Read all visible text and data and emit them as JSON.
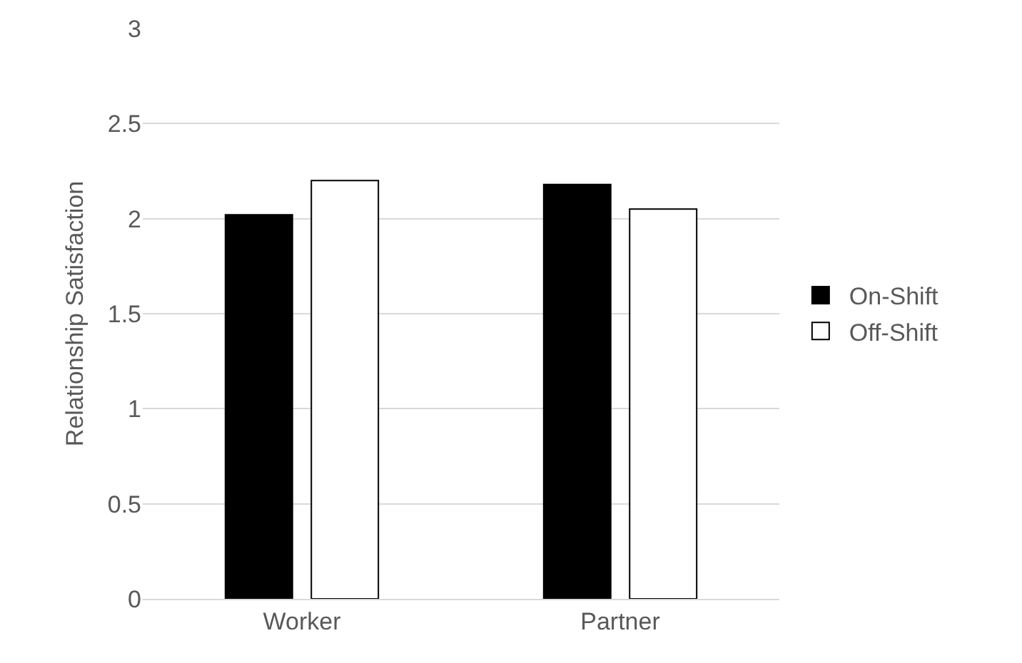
{
  "chart_data": {
    "type": "bar",
    "ylabel": "Relationship Satisfaction",
    "categories": [
      "Worker",
      "Partner"
    ],
    "series": [
      {
        "name": "On-Shift",
        "color": "#000000",
        "values": [
          2.02,
          2.18
        ]
      },
      {
        "name": "Off-Shift",
        "color": "#ffffff",
        "values": [
          2.2,
          2.05
        ]
      }
    ],
    "ylim": [
      0,
      3
    ],
    "yticks": [
      0,
      0.5,
      1,
      1.5,
      2,
      2.5,
      3
    ],
    "grid": "y",
    "legend": "right"
  }
}
